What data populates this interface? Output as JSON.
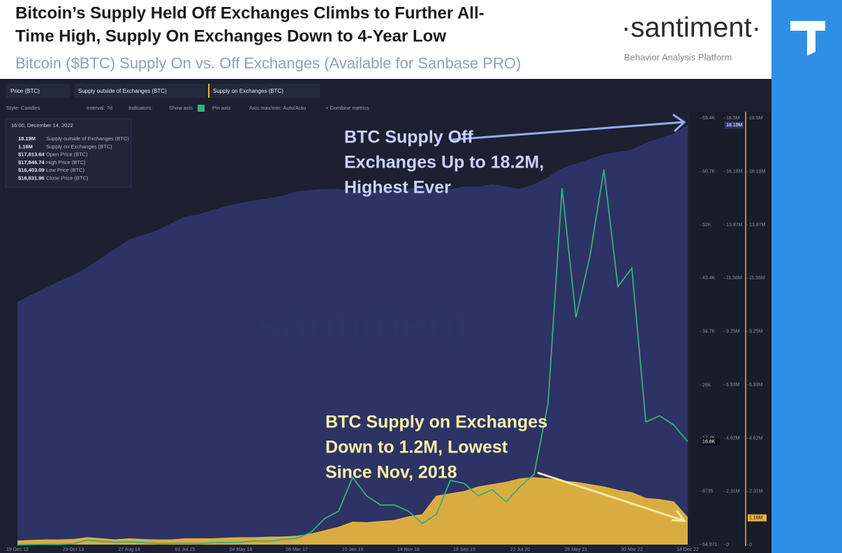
{
  "header": {
    "title": [
      "Bitcoin’s Supply Held Off Exchanges Climbs to Further All-",
      "Time High, Supply On Exchanges Down to 4-Year Low"
    ],
    "subtitle": "Bitcoin ($BTC) Supply On vs. Off Exchanges (Available for Sanbase PRO)",
    "logo": "·santiment·",
    "tagline": "Behavior Analysis Platform"
  },
  "toolbar": {
    "tabs": [
      "Price (BTC)",
      "Supply outside of Exchanges (BTC)",
      "Supply on Exchanges (BTC)"
    ],
    "controls": [
      "Style: Candles",
      "Interval: 7d",
      "Indicators:",
      "Show axis",
      "Pin axis",
      "Axis max/min: Auto/Auto",
      "+ Combine metrics"
    ]
  },
  "tooltip": {
    "date": "16:00, December 14, 2022",
    "rows": [
      {
        "value": "18.19M",
        "label": "Supply outside of Exchanges (BTC)"
      },
      {
        "value": "1.16M",
        "label": "Supply on Exchanges (BTC)"
      },
      {
        "value": "$17,813.64",
        "label": "Open Price (BTC)"
      },
      {
        "value": "$17,846.74",
        "label": "High Price (BTC)"
      },
      {
        "value": "$16,403.09",
        "label": "Low Price (BTC)"
      },
      {
        "value": "$16,831.96",
        "label": "Close Price (BTC)"
      }
    ]
  },
  "watermark": "santiment",
  "chart_data": {
    "type": "combo",
    "categories": [
      "19 Dec 12",
      null,
      null,
      null,
      "23 Oct 13",
      null,
      null,
      null,
      "27 Aug 14",
      null,
      null,
      null,
      "01 Jul 15",
      null,
      null,
      null,
      "04 May 16",
      null,
      null,
      null,
      "08 Mar 17",
      null,
      null,
      null,
      "10 Jan 18",
      null,
      null,
      null,
      "14 Nov 18",
      null,
      null,
      null,
      "18 Sep 19",
      null,
      null,
      null,
      "22 Jul 20",
      null,
      null,
      null,
      "26 May 21",
      null,
      null,
      null,
      "30 Mar 22",
      null,
      null,
      null,
      "14 Dec 22"
    ],
    "series": [
      {
        "name": "Supply outside of Exchanges (BTC)",
        "type": "area",
        "axis": "y2",
        "color": "#2e3568",
        "last_label": "18.19M",
        "values": [
          10500000,
          10800000,
          11100000,
          11400000,
          11660000,
          12000000,
          12400000,
          12800000,
          13200000,
          13400000,
          13600000,
          13900000,
          14200000,
          14300000,
          14500000,
          14650000,
          14800000,
          14900000,
          15000000,
          15100000,
          15300000,
          15350000,
          15400000,
          15400000,
          15300000,
          15300000,
          15350000,
          15400000,
          15400000,
          15500000,
          15300000,
          15400000,
          15500000,
          15500000,
          15600000,
          15500000,
          15400000,
          15600000,
          15900000,
          16300000,
          16500000,
          16700000,
          16900000,
          17000000,
          17100000,
          17400000,
          17600000,
          17800000,
          18190000
        ]
      },
      {
        "name": "Supply on Exchanges (BTC)",
        "type": "area",
        "axis": "y3",
        "color": "#e3b33f",
        "last_label": "1.16M",
        "values": [
          150000,
          180000,
          200000,
          200000,
          220000,
          300000,
          250000,
          200000,
          250000,
          220000,
          200000,
          200000,
          250000,
          250000,
          250000,
          280000,
          300000,
          300000,
          320000,
          330000,
          360000,
          450000,
          600000,
          750000,
          970000,
          950000,
          1000000,
          1050000,
          1200000,
          1300000,
          2100000,
          2200000,
          2300000,
          2500000,
          2600000,
          2700000,
          2850000,
          2900000,
          2850000,
          2750000,
          2700000,
          2600000,
          2500000,
          2350000,
          2250000,
          2000000,
          1950000,
          1850000,
          1160000
        ]
      },
      {
        "name": "Price (BTC)",
        "type": "line",
        "axis": "y",
        "color": "#35b07c",
        "last_label": "16.8K",
        "values": [
          13,
          90,
          120,
          90,
          200,
          800,
          600,
          450,
          500,
          390,
          220,
          260,
          280,
          230,
          380,
          400,
          450,
          660,
          600,
          900,
          1100,
          2000,
          4300,
          5500,
          11000,
          8000,
          6500,
          6500,
          5500,
          3500,
          5000,
          10500,
          10000,
          8000,
          9000,
          7000,
          9500,
          11500,
          23000,
          58000,
          37000,
          47000,
          61000,
          42000,
          45000,
          20000,
          21000,
          19500,
          16800
        ]
      }
    ],
    "ylim": [
      64.871,
      69400
    ],
    "yticks": [
      64.871,
      8735,
      {
        "value": 17400,
        "label": "17.4K"
      },
      {
        "value": 26000,
        "label": "26K"
      },
      {
        "value": 34700,
        "label": "34.7K"
      },
      {
        "value": 43400,
        "label": "43.4K"
      },
      {
        "value": 52000,
        "label": "52K"
      },
      {
        "value": 60700,
        "label": "60.7K"
      },
      {
        "value": 69400,
        "label": "69.4K"
      }
    ],
    "y2lim": [
      0,
      18500000
    ],
    "y2ticks": [
      0,
      {
        "value": 2310000,
        "label": "2.31M"
      },
      {
        "value": 4620000,
        "label": "4.62M"
      },
      {
        "value": 6930000,
        "label": "6.93M"
      },
      {
        "value": 9250000,
        "label": "9.25M"
      },
      {
        "value": 11560000,
        "label": "11.56M"
      },
      {
        "value": 13870000,
        "label": "13.87M"
      },
      {
        "value": 16180000,
        "label": "16.18M"
      },
      {
        "value": 18500000,
        "label": "18.5M"
      }
    ],
    "y3lim": [
      0,
      18500000
    ],
    "y3ticks": [
      0,
      {
        "value": 2310000,
        "label": "2.31M"
      },
      {
        "value": 4620000,
        "label": "4.62M"
      },
      {
        "value": 6930000,
        "label": "6.93M"
      },
      {
        "value": 9250000,
        "label": "9.25M"
      },
      {
        "value": 11560000,
        "label": "11.56M"
      },
      {
        "value": 13870000,
        "label": "13.87M"
      },
      {
        "value": 16180000,
        "label": "16.18M"
      },
      {
        "value": 18500000,
        "label": "18.5M"
      }
    ],
    "annotations": [
      {
        "lines": [
          "BTC Supply Off",
          "Exchanges Up to 18.2M,",
          "Highest Ever"
        ],
        "color": "#c9d1fb"
      },
      {
        "lines": [
          "BTC Supply on Exchanges",
          "Down to 1.2M, Lowest",
          "Since Nov, 2018"
        ],
        "color": "#fbf0a6"
      }
    ]
  }
}
